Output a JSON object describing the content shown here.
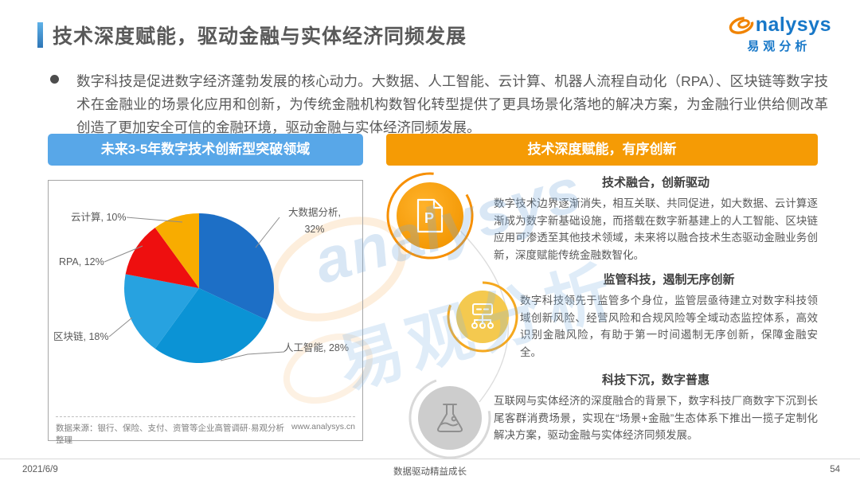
{
  "page": {
    "title": "技术深度赋能，驱动金融与实体经济同频发展",
    "footer": {
      "date": "2021/6/9",
      "slogan": "数据驱动精益成长",
      "page_number": "54"
    }
  },
  "logo": {
    "brand": "analysys",
    "brand_cn": "易观分析"
  },
  "intro": {
    "text": "数字科技是促进数字经济蓬勃发展的核心动力。大数据、人工智能、云计算、机器人流程自动化（RPA）、区块链等数字技术在金融业的场景化应用和创新，为传统金融机构数智化转型提供了更具场景化落地的解决方案，为金融行业供给侧改革创造了更加安全可信的金融环境，驱动金融与实体经济同频发展。"
  },
  "left_panel": {
    "header": "未来3-5年数字技术创新型突破领域",
    "source": "数据来源：银行、保险、支付、资管等企业高管调研·易观分析整理",
    "website": "www.analysys.cn"
  },
  "chart_data": {
    "type": "pie",
    "title": "未来3-5年数字技术创新型突破领域",
    "labels": [
      "大数据分析",
      "人工智能",
      "区块链",
      "RPA",
      "云计算"
    ],
    "values": [
      32,
      28,
      18,
      12,
      10
    ],
    "unit": "%",
    "colors": [
      "#1d6fc6",
      "#0b93d5",
      "#27a2e0",
      "#ee0f0f",
      "#f8ac00"
    ],
    "start_angle_deg": 0,
    "direction": "clockwise",
    "legend_position": "outside-callouts"
  },
  "right_panel": {
    "header": "技术深度赋能，有序创新",
    "items": [
      {
        "title": "技术融合，创新驱动",
        "icon": "document-p-icon",
        "body": "数字技术边界逐渐消失，相互关联、共同促进，如大数据、云计算逐渐成为数字新基础设施，而搭载在数字新基建上的人工智能、区块链应用可渗透至其他技术领域，未来将以融合技术生态驱动金融业务创新，深度赋能传统金融数智化。"
      },
      {
        "title": "监管科技，遏制无序创新",
        "icon": "network-icon",
        "body": "数字科技领先于监管多个身位，监管层亟待建立对数字科技领域创新风险、经营风险和合规风险等全域动态监控体系，高效识别金融风险，有助于第一时间遏制无序创新，保障金融安全。"
      },
      {
        "title": "科技下沉，数字普惠",
        "icon": "flask-icon",
        "body": "互联网与实体经济的深度融合的背景下，数字科技厂商数字下沉到长尾客群消费场景，实现在“场景+金融”生态体系下推出一揽子定制化解决方案，驱动金融与实体经济同频发展。"
      }
    ]
  },
  "watermark": {
    "latin": "analysys",
    "cn": "易观分析"
  }
}
